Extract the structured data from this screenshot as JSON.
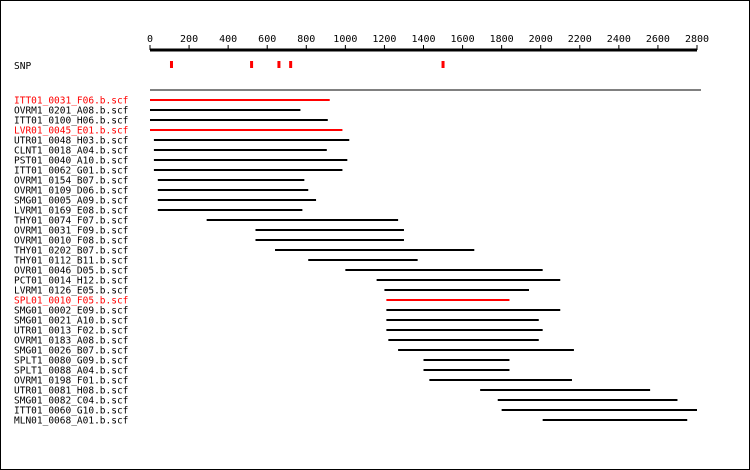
{
  "axis": {
    "min": 0,
    "max": 2800,
    "ticks": [
      "0",
      "200",
      "400",
      "600",
      "800",
      "1000",
      "1200",
      "1400",
      "1600",
      "1800",
      "2000",
      "2200",
      "2400",
      "2600",
      "2800"
    ]
  },
  "snp": {
    "label": "SNP",
    "color": "#ff0000",
    "positions": [
      110,
      520,
      660,
      720,
      1500
    ]
  },
  "colors": {
    "normal": "#000000",
    "highlight": "#ff0000"
  },
  "reads": [
    {
      "name": "ITT01_0031_F06.b.scf",
      "start": 0,
      "end": 920,
      "highlight": true
    },
    {
      "name": "OVRM1_0201_A08.b.scf",
      "start": 0,
      "end": 770,
      "highlight": false
    },
    {
      "name": "ITT01_0100_H06.b.scf",
      "start": 0,
      "end": 910,
      "highlight": false
    },
    {
      "name": "LVR01_0045_E01.b.scf",
      "start": 0,
      "end": 985,
      "highlight": true
    },
    {
      "name": "UTR01_0048_H03.b.scf",
      "start": 20,
      "end": 1020,
      "highlight": false
    },
    {
      "name": "CLNT1_0018_A04.b.scf",
      "start": 20,
      "end": 905,
      "highlight": false
    },
    {
      "name": "PST01_0040_A10.b.scf",
      "start": 20,
      "end": 1010,
      "highlight": false
    },
    {
      "name": "ITT01_0062_G01.b.scf",
      "start": 20,
      "end": 985,
      "highlight": false
    },
    {
      "name": "OVRM1_0154_B07.b.scf",
      "start": 40,
      "end": 790,
      "highlight": false
    },
    {
      "name": "OVRM1_0109_D06.b.scf",
      "start": 40,
      "end": 810,
      "highlight": false
    },
    {
      "name": "SMG01_0005_A09.b.scf",
      "start": 40,
      "end": 850,
      "highlight": false
    },
    {
      "name": "LVRM1_0169_E08.b.scf",
      "start": 40,
      "end": 780,
      "highlight": false
    },
    {
      "name": "THY01_0074_F07.b.scf",
      "start": 290,
      "end": 1270,
      "highlight": false
    },
    {
      "name": "OVRM1_0031_F09.b.scf",
      "start": 540,
      "end": 1300,
      "highlight": false
    },
    {
      "name": "OVRM1_0010_F08.b.scf",
      "start": 540,
      "end": 1300,
      "highlight": false
    },
    {
      "name": "THY01_0202_B07.b.scf",
      "start": 640,
      "end": 1660,
      "highlight": false
    },
    {
      "name": "THY01_0112_B11.b.scf",
      "start": 810,
      "end": 1370,
      "highlight": false
    },
    {
      "name": "OVR01_0046_D05.b.scf",
      "start": 1000,
      "end": 2010,
      "highlight": false
    },
    {
      "name": "PCT01_0014_H12.b.scf",
      "start": 1160,
      "end": 2100,
      "highlight": false
    },
    {
      "name": "LVRM1_0126_E05.b.scf",
      "start": 1200,
      "end": 1940,
      "highlight": false
    },
    {
      "name": "SPL01_0010_F05.b.scf",
      "start": 1210,
      "end": 1840,
      "highlight": true
    },
    {
      "name": "SMG01_0002_E09.b.scf",
      "start": 1210,
      "end": 2100,
      "highlight": false
    },
    {
      "name": "SMG01_0021_A10.b.scf",
      "start": 1210,
      "end": 1990,
      "highlight": false
    },
    {
      "name": "UTR01_0013_F02.b.scf",
      "start": 1210,
      "end": 2010,
      "highlight": false
    },
    {
      "name": "OVRM1_0183_A08.b.scf",
      "start": 1220,
      "end": 1990,
      "highlight": false
    },
    {
      "name": "SMG01_0026_B07.b.scf",
      "start": 1270,
      "end": 2170,
      "highlight": false
    },
    {
      "name": "SPLT1_0080_G09.b.scf",
      "start": 1400,
      "end": 1840,
      "highlight": false
    },
    {
      "name": "SPLT1_0088_A04.b.scf",
      "start": 1400,
      "end": 1840,
      "highlight": false
    },
    {
      "name": "OVRM1_0198_F01.b.scf",
      "start": 1430,
      "end": 2160,
      "highlight": false
    },
    {
      "name": "UTR01_0081_H08.b.scf",
      "start": 1690,
      "end": 2560,
      "highlight": false
    },
    {
      "name": "SMG01_0082_C04.b.scf",
      "start": 1780,
      "end": 2700,
      "highlight": false
    },
    {
      "name": "ITT01_0060_G10.b.scf",
      "start": 1800,
      "end": 2800,
      "highlight": false
    },
    {
      "name": "MLN01_0068_A01.b.scf",
      "start": 2010,
      "end": 2750,
      "highlight": false
    }
  ]
}
